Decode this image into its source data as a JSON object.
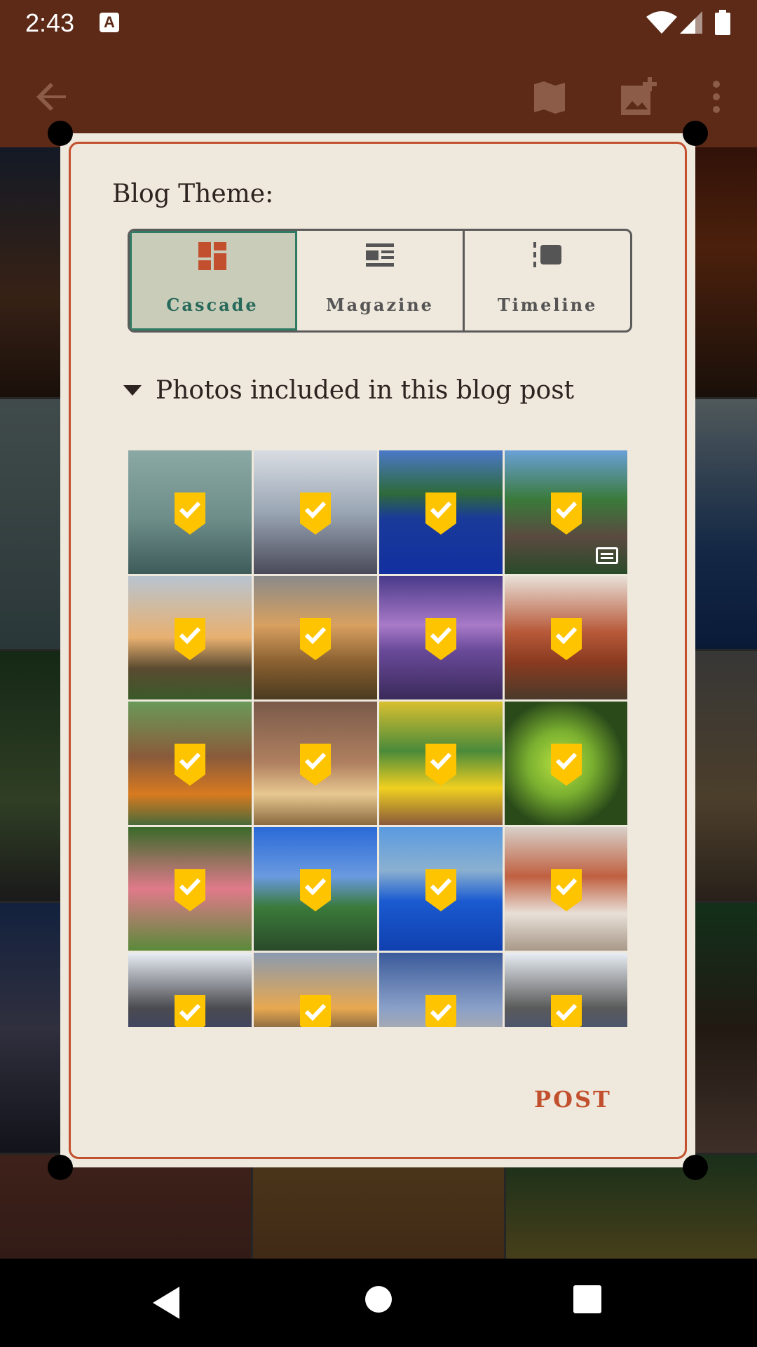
{
  "status_bar": {
    "time": "2:43",
    "notification_glyph": "A"
  },
  "app_bar": {
    "back_icon": "arrow-back-icon",
    "actions": [
      "map-icon",
      "add-photo-icon",
      "more-vert-icon"
    ]
  },
  "dialog": {
    "title": "Blog Theme:",
    "themes": [
      {
        "label": "Cascade",
        "selected": true,
        "icon": "cascade-icon"
      },
      {
        "label": "Magazine",
        "selected": false,
        "icon": "magazine-icon"
      },
      {
        "label": "Timeline",
        "selected": false,
        "icon": "timeline-icon"
      }
    ],
    "photos_header": "Photos included in this blog post",
    "post_button": "POST"
  },
  "photos": [
    {
      "subject": "airplane-at-gate",
      "checked": true
    },
    {
      "subject": "musicians-airport",
      "checked": true
    },
    {
      "subject": "swimming-pool",
      "checked": true
    },
    {
      "subject": "pool-garden",
      "checked": true,
      "has_caption": true
    },
    {
      "subject": "beach-palms-sunset",
      "checked": true
    },
    {
      "subject": "ocean-sunset",
      "checked": true
    },
    {
      "subject": "purple-sky-shore",
      "checked": true
    },
    {
      "subject": "lobster-dinner",
      "checked": true
    },
    {
      "subject": "festival-dancers",
      "checked": true
    },
    {
      "subject": "festival-face-paint",
      "checked": true
    },
    {
      "subject": "festival-yellow-shirt",
      "checked": true
    },
    {
      "subject": "green-lime",
      "checked": true
    },
    {
      "subject": "pink-flowers",
      "checked": true
    },
    {
      "subject": "hotel-garden",
      "checked": true
    },
    {
      "subject": "resort-pool",
      "checked": true
    },
    {
      "subject": "seafood-buffet",
      "checked": true
    },
    {
      "subject": "pool-sculpture",
      "checked": true
    },
    {
      "subject": "beach-sunset",
      "checked": true
    },
    {
      "subject": "cloudy-sky",
      "checked": true
    },
    {
      "subject": "pool-sculpture-2",
      "checked": true
    }
  ],
  "colors": {
    "app_bar": "#5d2a17",
    "accent": "#c2502e",
    "check_badge": "#ffc400",
    "selected_theme": "#2e7a62"
  }
}
